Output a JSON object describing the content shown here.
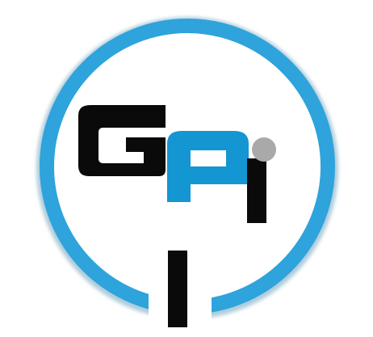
{
  "logo": {
    "lettering": "GPI",
    "colors": {
      "ring": "#2ea3dc",
      "ring_shadow": "#1b6f98",
      "letter_dark": "#0a0a0a",
      "letter_blue": "#1496d2",
      "dot": "#a9a9a9",
      "background": "#ffffff"
    }
  }
}
